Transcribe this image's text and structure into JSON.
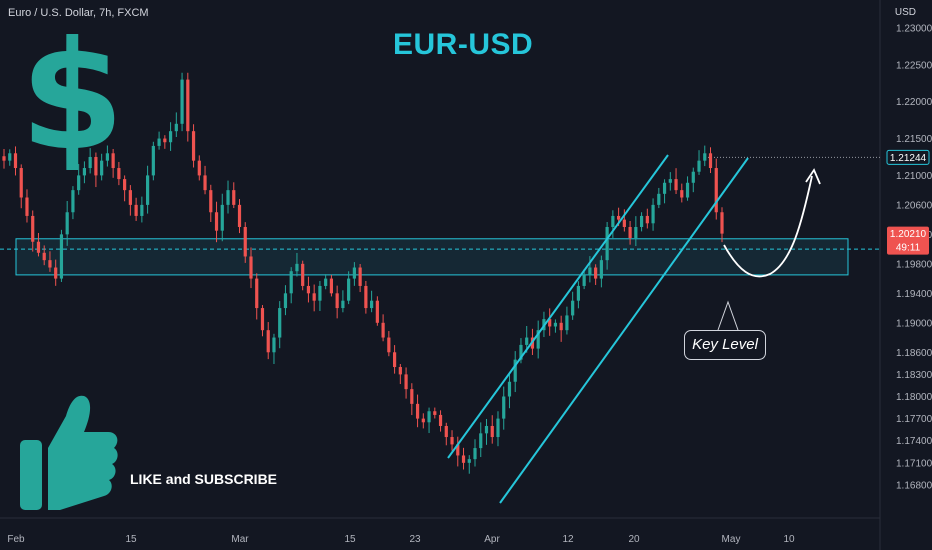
{
  "header": {
    "symbol_label": "Euro / U.S. Dollar, 7h, FXCM",
    "currency": "USD"
  },
  "overlay": {
    "title": "EUR-USD",
    "dollar_glyph": "$",
    "like_text": "LIKE and SUBSCRIBE",
    "key_level_label": "Key Level"
  },
  "colors": {
    "background": "#131722",
    "bull": "#26a69a",
    "bear": "#ef5350",
    "cyan": "#26c6da",
    "title": "#26c6da"
  },
  "price_tags": {
    "upper": "1.21244",
    "current": "1.20210",
    "countdown": "49:11"
  },
  "chart_data": {
    "type": "candlestick",
    "instrument": "Euro / U.S. Dollar",
    "timeframe": "7h",
    "y_ticks": [
      "1.23000",
      "1.22500",
      "1.22000",
      "1.21500",
      "1.21000",
      "1.20600",
      "1.20200",
      "1.19800",
      "1.19400",
      "1.19000",
      "1.18600",
      "1.18300",
      "1.18000",
      "1.17700",
      "1.17400",
      "1.17100",
      "1.16800"
    ],
    "x_ticks": [
      "Feb",
      "15",
      "Mar",
      "15",
      "23",
      "Apr",
      "12",
      "20",
      "May",
      "10"
    ],
    "ylim": [
      1.168,
      1.23
    ],
    "key_level_zone": [
      1.1965,
      1.2014
    ],
    "dashed_level": 1.2,
    "resistance_dotted": 1.21244,
    "current_price": 1.2021,
    "channel": {
      "upper": [
        [
          "Mar 28",
          1.176
        ],
        [
          "Apr 27",
          1.2138
        ]
      ],
      "lower": [
        [
          "Apr 1",
          1.1705
        ],
        [
          "May 3",
          1.2127
        ]
      ]
    },
    "projection": "dip to 1.1990 then rise to 1.2110",
    "closes": [
      1.212,
      1.213,
      1.211,
      1.207,
      1.2045,
      1.201,
      1.1995,
      1.1985,
      1.1975,
      1.196,
      1.202,
      1.205,
      1.208,
      1.21,
      1.211,
      1.2125,
      1.21,
      1.212,
      1.213,
      1.211,
      1.2095,
      1.208,
      1.206,
      1.2045,
      1.206,
      1.21,
      1.214,
      1.215,
      1.2145,
      1.216,
      1.217,
      1.223,
      1.216,
      1.212,
      1.21,
      1.208,
      1.205,
      1.2025,
      1.206,
      1.208,
      1.206,
      1.203,
      1.199,
      1.196,
      1.192,
      1.189,
      1.186,
      1.188,
      1.192,
      1.194,
      1.197,
      1.198,
      1.195,
      1.194,
      1.193,
      1.195,
      1.196,
      1.194,
      1.192,
      1.193,
      1.196,
      1.1975,
      1.195,
      1.192,
      1.193,
      1.19,
      1.188,
      1.186,
      1.184,
      1.183,
      1.181,
      1.179,
      1.177,
      1.1765,
      1.178,
      1.1775,
      1.176,
      1.1745,
      1.1735,
      1.172,
      1.171,
      1.1715,
      1.173,
      1.175,
      1.176,
      1.1745,
      1.177,
      1.18,
      1.182,
      1.185,
      1.187,
      1.188,
      1.1865,
      1.189,
      1.1905,
      1.1895,
      1.19,
      1.189,
      1.191,
      1.193,
      1.195,
      1.1965,
      1.1975,
      1.196,
      1.1985,
      1.203,
      1.2045,
      1.204,
      1.203,
      1.2015,
      1.203,
      1.2045,
      1.2035,
      1.206,
      1.2075,
      1.209,
      1.2095,
      1.208,
      1.207,
      1.209,
      1.2105,
      1.212,
      1.213,
      1.211,
      1.205,
      1.2021
    ]
  }
}
